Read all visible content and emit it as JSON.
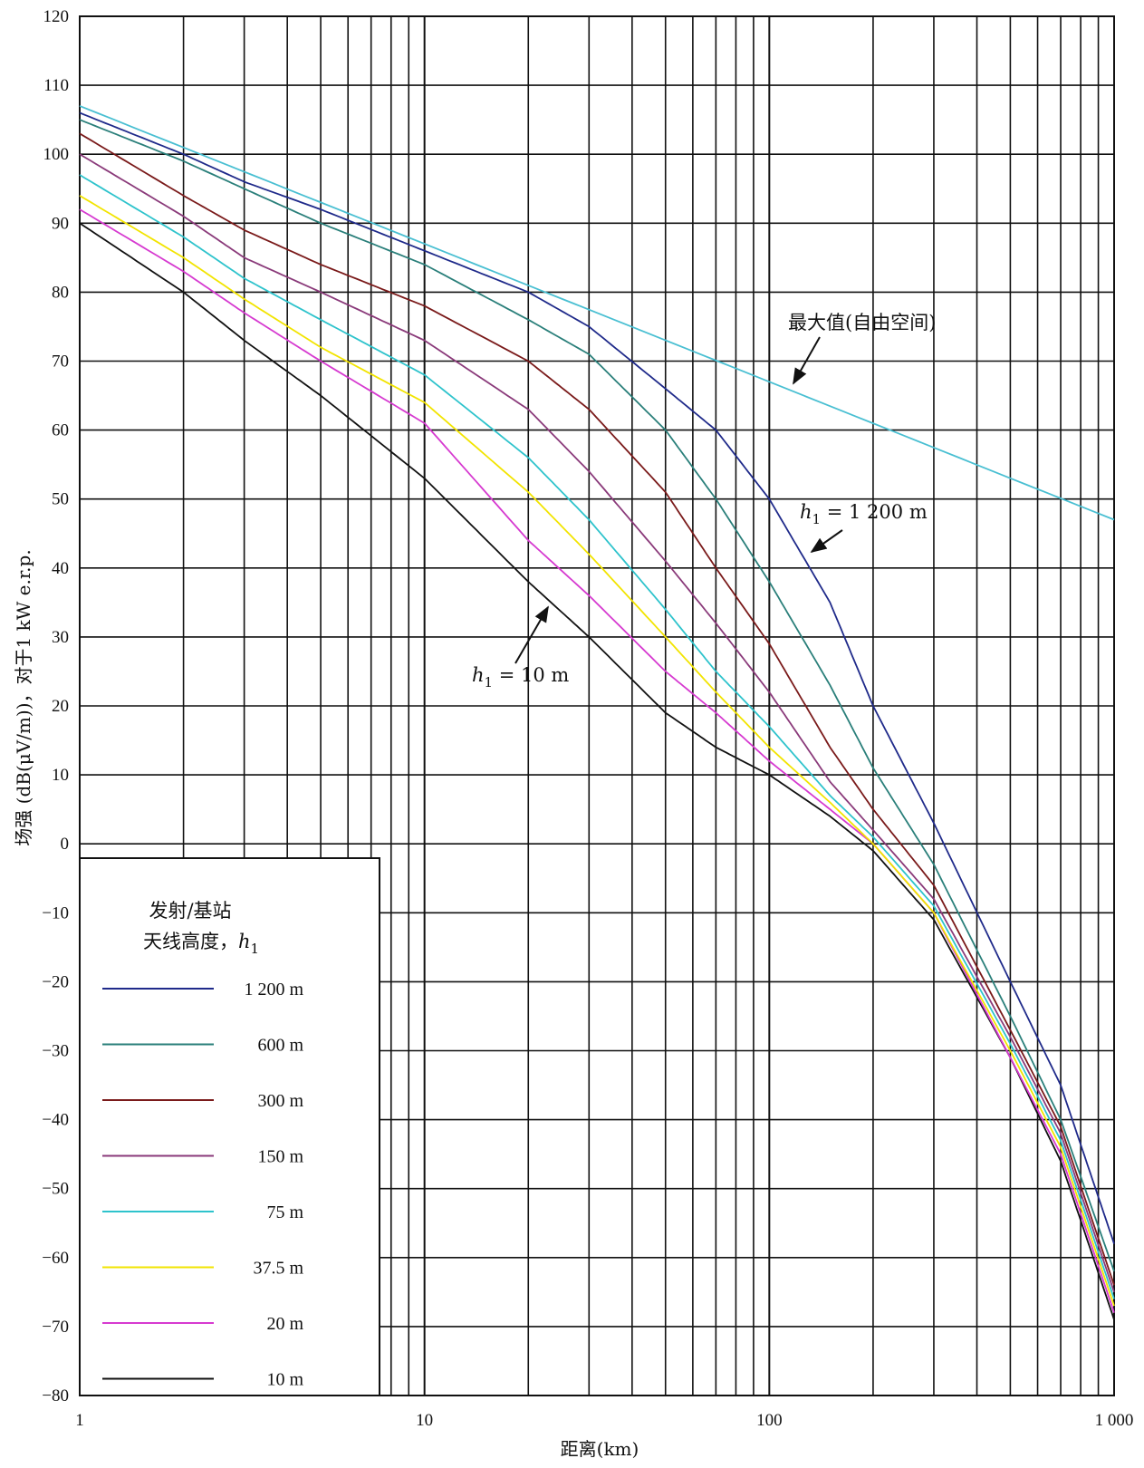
{
  "chart_data": {
    "type": "line",
    "xlabel": "距离(km)",
    "ylabel": "场强 (dB(μV/m))，对于1 kW e.r.p.",
    "xscale": "log",
    "xlim": [
      1,
      1000
    ],
    "ylim": [
      -80,
      120
    ],
    "grid": true,
    "x_ticks": [
      {
        "value": 1,
        "label": "1"
      },
      {
        "value": 10,
        "label": "10"
      },
      {
        "value": 100,
        "label": "100"
      },
      {
        "value": 1000,
        "label": "1 000"
      }
    ],
    "y_ticks": [
      120,
      110,
      100,
      90,
      80,
      70,
      60,
      50,
      40,
      30,
      20,
      10,
      0,
      -10,
      -20,
      -30,
      -40,
      -50,
      -60,
      -70,
      -80
    ],
    "y_tick_labels": [
      "120",
      "110",
      "100",
      "90",
      "80",
      "70",
      "60",
      "50",
      "40",
      "30",
      "20",
      "10",
      "0",
      "−10",
      "−20",
      "−30",
      "−40",
      "−50",
      "−60",
      "−70",
      "−80"
    ],
    "legend": {
      "title_line1": "发射/基站",
      "title_line2_prefix": "天线高度，",
      "title_line2_var": "h",
      "title_line2_sub": "1",
      "location": "lower-left"
    },
    "series": [
      {
        "name": "1 200 m",
        "color": "#1f2a8a",
        "x": [
          1,
          2,
          3,
          5,
          10,
          20,
          30,
          50,
          70,
          100,
          150,
          200,
          300,
          500,
          700,
          1000
        ],
        "y": [
          106,
          100,
          96,
          92,
          86,
          80,
          75,
          66,
          60,
          50,
          35,
          20,
          3,
          -20,
          -35,
          -58
        ]
      },
      {
        "name": "600 m",
        "color": "#2a7f7a",
        "x": [
          1,
          2,
          3,
          5,
          10,
          20,
          30,
          50,
          70,
          100,
          150,
          200,
          300,
          500,
          700,
          1000
        ],
        "y": [
          105,
          99,
          95,
          90,
          84,
          76,
          71,
          60,
          50,
          38,
          23,
          11,
          -3,
          -25,
          -40,
          -62
        ]
      },
      {
        "name": "300 m",
        "color": "#7a1a1a",
        "x": [
          1,
          2,
          3,
          5,
          10,
          20,
          30,
          50,
          70,
          100,
          150,
          200,
          300,
          500,
          700,
          1000
        ],
        "y": [
          103,
          94,
          89,
          84,
          78,
          70,
          63,
          51,
          40,
          29,
          14,
          5,
          -6,
          -27,
          -41,
          -64
        ]
      },
      {
        "name": "150 m",
        "color": "#8a3a7a",
        "x": [
          1,
          2,
          3,
          5,
          10,
          20,
          30,
          50,
          70,
          100,
          150,
          200,
          300,
          500,
          700,
          1000
        ],
        "y": [
          100,
          91,
          85,
          80,
          73,
          63,
          54,
          41,
          32,
          22,
          9,
          2,
          -8,
          -28,
          -42,
          -65
        ]
      },
      {
        "name": "75 m",
        "color": "#2ec3cc",
        "x": [
          1,
          2,
          3,
          5,
          10,
          20,
          30,
          50,
          70,
          100,
          150,
          200,
          300,
          500,
          700,
          1000
        ],
        "y": [
          97,
          88,
          82,
          76,
          68,
          56,
          47,
          34,
          25,
          17,
          7,
          1,
          -9,
          -29,
          -43,
          -66
        ]
      },
      {
        "name": "37.5 m",
        "color": "#f2e400",
        "x": [
          1,
          2,
          3,
          5,
          10,
          20,
          30,
          50,
          70,
          100,
          150,
          200,
          300,
          500,
          700,
          1000
        ],
        "y": [
          94,
          85,
          79,
          72,
          64,
          51,
          42,
          30,
          22,
          14,
          6,
          0,
          -10,
          -30,
          -44,
          -67
        ]
      },
      {
        "name": "20 m",
        "color": "#d63ad0",
        "x": [
          1,
          2,
          3,
          5,
          10,
          20,
          30,
          50,
          70,
          100,
          150,
          200,
          300,
          500,
          700,
          1000
        ],
        "y": [
          92,
          83,
          77,
          70,
          61,
          44,
          36,
          25,
          19,
          12,
          5,
          0,
          -10,
          -31,
          -45,
          -68
        ]
      },
      {
        "name": "10 m",
        "color": "#111111",
        "x": [
          1,
          2,
          3,
          5,
          10,
          20,
          30,
          50,
          70,
          100,
          150,
          200,
          300,
          500,
          700,
          1000
        ],
        "y": [
          90,
          80,
          73,
          65,
          53,
          38,
          30,
          19,
          14,
          10,
          4,
          -1,
          -11,
          -31,
          -46,
          -69
        ]
      },
      {
        "name": "最大值(自由空间)",
        "color": "#49bfd2",
        "x": [
          1,
          10,
          100,
          1000
        ],
        "y": [
          107,
          87,
          67,
          47
        ]
      }
    ],
    "annotations": [
      {
        "text": "最大值(自由空间)",
        "target": [
          140,
          66
        ]
      },
      {
        "text_var": "h",
        "text_sub": "1",
        "text_rest": " = 1 200 m",
        "target": [
          130,
          39
        ]
      },
      {
        "text_var": "h",
        "text_sub": "1",
        "text_rest": " = 10 m",
        "target": [
          22,
          36
        ]
      }
    ]
  }
}
